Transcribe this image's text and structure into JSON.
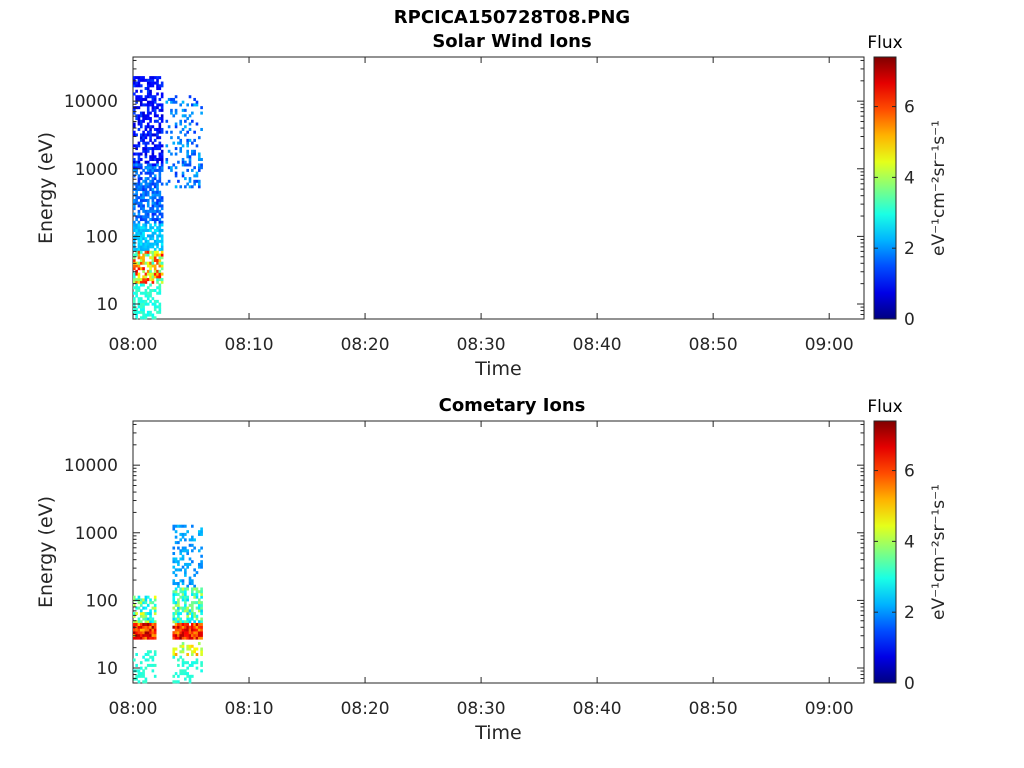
{
  "figure": {
    "title": "RPCICA150728T08.PNG"
  },
  "panels": [
    {
      "title": "Solar Wind Ions",
      "xlabel": "Time",
      "ylabel": "Energy (eV)",
      "colorbar_title": "Flux",
      "colorbar_label": "eV⁻¹cm⁻²sr⁻¹s⁻¹"
    },
    {
      "title": "Cometary Ions",
      "xlabel": "Time",
      "ylabel": "Energy (eV)",
      "colorbar_title": "Flux",
      "colorbar_label": "eV⁻¹cm⁻²sr⁻¹s⁻¹"
    }
  ],
  "chart_data": [
    {
      "type": "heatmap",
      "title": "Solar Wind Ions",
      "xlabel": "Time",
      "ylabel": "Energy (eV)",
      "x_range": [
        "08:00",
        "09:03"
      ],
      "x_ticks": [
        "08:00",
        "08:10",
        "08:20",
        "08:30",
        "08:40",
        "08:50",
        "09:00"
      ],
      "y_scale": "log",
      "y_range": [
        6,
        45000
      ],
      "y_ticks": [
        10,
        100,
        1000,
        10000
      ],
      "colorbar": {
        "title": "Flux",
        "label": "eV⁻¹cm⁻²sr⁻¹s⁻¹",
        "range": [
          0,
          7.4
        ],
        "ticks": [
          0,
          2,
          4,
          6
        ],
        "colormap": "jet"
      },
      "regions": [
        {
          "t_start_min": 0.0,
          "t_end_min": 2.6,
          "e_min_eV": 1000,
          "e_max_eV": 24000,
          "flux_min": 0.6,
          "flux_max": 1.4,
          "fill": 0.55
        },
        {
          "t_start_min": 0.0,
          "t_end_min": 2.6,
          "e_min_eV": 150,
          "e_max_eV": 1200,
          "flux_min": 1.2,
          "flux_max": 2.1,
          "fill": 0.65
        },
        {
          "t_start_min": 0.0,
          "t_end_min": 2.6,
          "e_min_eV": 60,
          "e_max_eV": 160,
          "flux_min": 2.1,
          "flux_max": 2.7,
          "fill": 0.7
        },
        {
          "t_start_min": 0.0,
          "t_end_min": 2.6,
          "e_min_eV": 20,
          "e_max_eV": 60,
          "flux_min": 3.0,
          "flux_max": 6.5,
          "fill": 0.8
        },
        {
          "t_start_min": 0.0,
          "t_end_min": 2.4,
          "e_min_eV": 6,
          "e_max_eV": 20,
          "flux_min": 2.8,
          "flux_max": 3.3,
          "fill": 0.55
        },
        {
          "t_start_min": 2.8,
          "t_end_min": 6.0,
          "e_min_eV": 500,
          "e_max_eV": 12000,
          "flux_min": 1.3,
          "flux_max": 2.3,
          "fill": 0.25
        }
      ]
    },
    {
      "type": "heatmap",
      "title": "Cometary Ions",
      "xlabel": "Time",
      "ylabel": "Energy (eV)",
      "x_range": [
        "08:00",
        "09:03"
      ],
      "x_ticks": [
        "08:00",
        "08:10",
        "08:20",
        "08:30",
        "08:40",
        "08:50",
        "09:00"
      ],
      "y_scale": "log",
      "y_range": [
        6,
        45000
      ],
      "y_ticks": [
        10,
        100,
        1000,
        10000
      ],
      "colorbar": {
        "title": "Flux",
        "label": "eV⁻¹cm⁻²sr⁻¹s⁻¹",
        "range": [
          0,
          7.4
        ],
        "ticks": [
          0,
          2,
          4,
          6
        ],
        "colormap": "jet"
      },
      "regions": [
        {
          "t_start_min": 0.0,
          "t_end_min": 2.0,
          "e_min_eV": 45,
          "e_max_eV": 120,
          "flux_min": 2.4,
          "flux_max": 4.6,
          "fill": 0.55
        },
        {
          "t_start_min": 0.0,
          "t_end_min": 2.0,
          "e_min_eV": 27,
          "e_max_eV": 45,
          "flux_min": 5.0,
          "flux_max": 7.2,
          "fill": 0.95
        },
        {
          "t_start_min": 0.0,
          "t_end_min": 2.0,
          "e_min_eV": 6,
          "e_max_eV": 18,
          "flux_min": 2.9,
          "flux_max": 3.2,
          "fill": 0.35
        },
        {
          "t_start_min": 3.4,
          "t_end_min": 6.0,
          "e_min_eV": 160,
          "e_max_eV": 1300,
          "flux_min": 1.8,
          "flux_max": 2.4,
          "fill": 0.3
        },
        {
          "t_start_min": 3.4,
          "t_end_min": 6.0,
          "e_min_eV": 45,
          "e_max_eV": 150,
          "flux_min": 2.4,
          "flux_max": 4.2,
          "fill": 0.6
        },
        {
          "t_start_min": 3.4,
          "t_end_min": 6.0,
          "e_min_eV": 27,
          "e_max_eV": 45,
          "flux_min": 5.2,
          "flux_max": 7.3,
          "fill": 0.95
        },
        {
          "t_start_min": 3.4,
          "t_end_min": 6.0,
          "e_min_eV": 15,
          "e_max_eV": 27,
          "flux_min": 3.5,
          "flux_max": 5.5,
          "fill": 0.4
        },
        {
          "t_start_min": 3.4,
          "t_end_min": 6.0,
          "e_min_eV": 6,
          "e_max_eV": 15,
          "flux_min": 2.9,
          "flux_max": 3.2,
          "fill": 0.35
        }
      ]
    }
  ]
}
